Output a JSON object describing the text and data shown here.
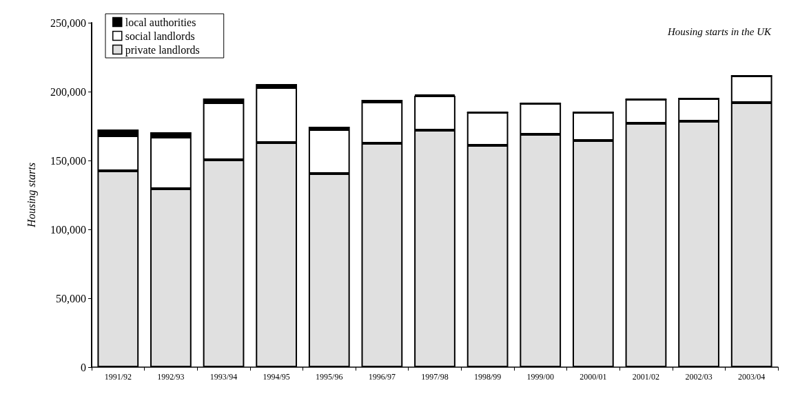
{
  "chart_data": {
    "type": "bar",
    "stacked": true,
    "ylabel": "Housing starts",
    "annotations": [
      "Housing starts in the UK"
    ],
    "categories": [
      "1991/92",
      "1992/93",
      "1993/94",
      "1994/95",
      "1995/96",
      "1996/97",
      "1997/98",
      "1998/99",
      "1999/00",
      "2000/01",
      "2001/02",
      "2002/03",
      "2003/04"
    ],
    "series": [
      {
        "name": "private landlords",
        "color": "#e0e0e0",
        "values": [
          142500,
          129500,
          150500,
          163000,
          140500,
          162500,
          172000,
          161000,
          169000,
          164500,
          177000,
          178500,
          192000
        ]
      },
      {
        "name": "social landlords",
        "color": "#ffffff",
        "values": [
          25500,
          37500,
          41500,
          40000,
          32000,
          30000,
          25000,
          24000,
          22500,
          20500,
          17500,
          16500,
          19500
        ]
      },
      {
        "name": "local authorities",
        "color": "#000000",
        "values": [
          4500,
          3500,
          3000,
          2500,
          2000,
          1500,
          1000,
          0,
          0,
          0,
          0,
          0,
          0
        ]
      }
    ],
    "ylim": [
      0,
      250000
    ],
    "yticks": [
      0,
      {
        "value": 50000,
        "label": "50,000"
      },
      {
        "value": 100000,
        "label": "100,000"
      },
      {
        "value": 150000,
        "label": "150,000"
      },
      {
        "value": 200000,
        "label": "200,000"
      },
      {
        "value": 250000,
        "label": "250,000"
      }
    ],
    "grid": false,
    "legend": "top left"
  }
}
